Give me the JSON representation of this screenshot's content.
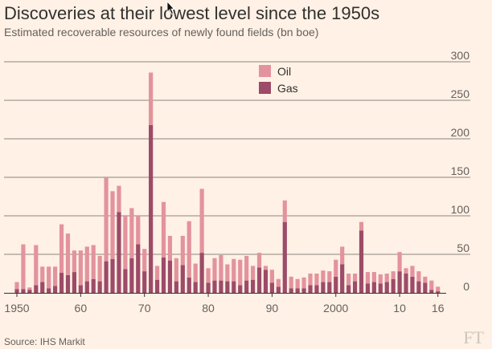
{
  "header": {
    "title": "Discoveries at their lowest level since the 1950s",
    "subtitle": "Estimated recoverable resources of newly found fields (bn boe)"
  },
  "footer": {
    "source": "Source: IHS Markit",
    "brand": "FT"
  },
  "colors": {
    "background": "#fff1e5",
    "oil": "#e3939e",
    "gas": "#9c4b68",
    "grid": "#66605c",
    "text": "#33302e"
  },
  "chart_data": {
    "type": "bar",
    "stacked": true,
    "x": [
      1950,
      1951,
      1952,
      1953,
      1954,
      1955,
      1956,
      1957,
      1958,
      1959,
      1960,
      1961,
      1962,
      1963,
      1964,
      1965,
      1966,
      1967,
      1968,
      1969,
      1970,
      1971,
      1972,
      1973,
      1974,
      1975,
      1976,
      1977,
      1978,
      1979,
      1980,
      1981,
      1982,
      1983,
      1984,
      1985,
      1986,
      1987,
      1988,
      1989,
      1990,
      1991,
      1992,
      1993,
      1994,
      1995,
      1996,
      1997,
      1998,
      1999,
      2000,
      2001,
      2002,
      2003,
      2004,
      2005,
      2006,
      2007,
      2008,
      2009,
      2010,
      2011,
      2012,
      2013,
      2014,
      2015,
      2016
    ],
    "x_tick_labels": [
      "1950",
      "60",
      "70",
      "80",
      "90",
      "2000",
      "10",
      "16"
    ],
    "x_tick_values": [
      1950,
      1960,
      1970,
      1980,
      1990,
      2000,
      2010,
      2016
    ],
    "series": [
      {
        "name": "Gas",
        "values": [
          5,
          5,
          4,
          10,
          14,
          6,
          9,
          26,
          23,
          27,
          10,
          15,
          18,
          15,
          41,
          44,
          105,
          31,
          45,
          63,
          28,
          218,
          17,
          46,
          42,
          15,
          36,
          20,
          14,
          52,
          13,
          16,
          16,
          15,
          15,
          10,
          16,
          17,
          33,
          30,
          13,
          8,
          92,
          6,
          6,
          6,
          10,
          10,
          14,
          14,
          21,
          37,
          10,
          15,
          81,
          12,
          14,
          12,
          14,
          18,
          28,
          25,
          21,
          15,
          13,
          4,
          2
        ],
        "totals": [
          14,
          63,
          7,
          62,
          34,
          34,
          34,
          89,
          77,
          55,
          55,
          60,
          62,
          48,
          150,
          132,
          139,
          100,
          110,
          100,
          57,
          286,
          35,
          118,
          74,
          45,
          74,
          93,
          38,
          135,
          32,
          45,
          49,
          37,
          44,
          43,
          48,
          35,
          52,
          35,
          30,
          18,
          120,
          21,
          18,
          20,
          25,
          25,
          29,
          28,
          43,
          60,
          25,
          25,
          92,
          27,
          27,
          24,
          25,
          28,
          53,
          32,
          35,
          28,
          21,
          16,
          8
        ]
      },
      {
        "name": "Oil",
        "values": [
          9,
          58,
          3,
          52,
          20,
          28,
          25,
          63,
          54,
          28,
          45,
          45,
          44,
          33,
          109,
          88,
          34,
          69,
          65,
          37,
          29,
          68,
          18,
          72,
          32,
          30,
          38,
          73,
          24,
          83,
          19,
          29,
          33,
          22,
          29,
          33,
          32,
          18,
          19,
          5,
          17,
          10,
          28,
          15,
          12,
          14,
          15,
          15,
          15,
          14,
          22,
          23,
          15,
          10,
          11,
          15,
          13,
          12,
          11,
          10,
          25,
          7,
          14,
          13,
          8,
          12,
          6
        ]
      }
    ],
    "y_tick_labels": [
      "0",
      "50",
      "100",
      "150",
      "200",
      "250",
      "300"
    ],
    "y_tick_values": [
      0,
      50,
      100,
      150,
      200,
      250,
      300
    ],
    "ylim": [
      0,
      300
    ],
    "legend": {
      "placement": "top-center",
      "entries": [
        "Oil",
        "Gas"
      ]
    }
  }
}
